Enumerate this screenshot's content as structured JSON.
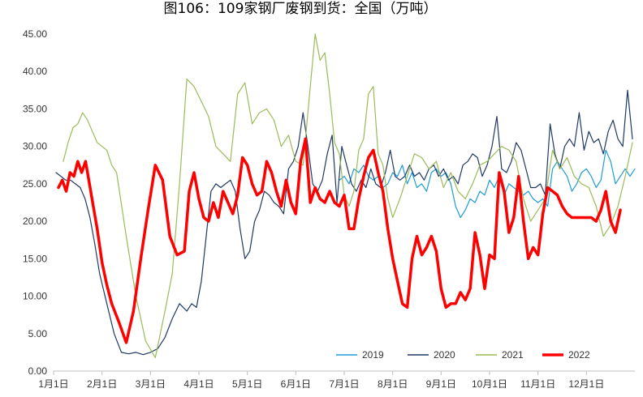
{
  "chart_data": {
    "type": "line",
    "title": "图106：109家钢厂废钢到货：全国（万吨）",
    "xlabel": "",
    "ylabel": "",
    "ylim": [
      0,
      45
    ],
    "yticks": [
      "0.00",
      "5.00",
      "10.00",
      "15.00",
      "20.00",
      "25.00",
      "30.00",
      "35.00",
      "40.00",
      "45.00"
    ],
    "x_tick_labels": [
      "1月1日",
      "2月1日",
      "3月1日",
      "4月1日",
      "5月1日",
      "6月1日",
      "7月1日",
      "8月1日",
      "9月1日",
      "10月1日",
      "11月1日",
      "12月1日"
    ],
    "x_unit": "month",
    "xlim": [
      0,
      12
    ],
    "grid": false,
    "legend_position": "bottom-right",
    "series": [
      {
        "name": "2019",
        "color": "#1E9BD7",
        "x": [
          5.9,
          6.0,
          6.1,
          6.2,
          6.3,
          6.4,
          6.5,
          6.6,
          6.7,
          6.8,
          6.9,
          7.0,
          7.1,
          7.2,
          7.3,
          7.4,
          7.5,
          7.6,
          7.7,
          7.8,
          7.9,
          8.0,
          8.1,
          8.2,
          8.3,
          8.4,
          8.5,
          8.6,
          8.7,
          8.8,
          8.9,
          9.0,
          9.1,
          9.2,
          9.3,
          9.4,
          9.5,
          9.6,
          9.7,
          9.8,
          9.9,
          10.0,
          10.1,
          10.2,
          10.3,
          10.4,
          10.5,
          10.6,
          10.7,
          10.8,
          10.9,
          11.0,
          11.1,
          11.2,
          11.3,
          11.4,
          11.5,
          11.6,
          11.7,
          11.8,
          11.9,
          12.0
        ],
        "values": [
          25.5,
          26.0,
          25.0,
          27.0,
          26.5,
          27.5,
          26.0,
          25.5,
          26.0,
          24.5,
          25.0,
          26.5,
          26.0,
          27.5,
          25.0,
          26.5,
          24.5,
          25.0,
          24.0,
          26.5,
          27.0,
          26.0,
          26.5,
          25.0,
          22.0,
          20.5,
          21.5,
          23.0,
          22.5,
          24.0,
          23.5,
          25.5,
          24.5,
          26.0,
          23.5,
          25.0,
          24.5,
          24.0,
          23.5,
          24.0,
          23.0,
          22.5,
          23.0,
          22.0,
          27.0,
          28.0,
          27.0,
          26.0,
          24.0,
          25.0,
          26.5,
          27.0,
          26.0,
          24.5,
          25.5,
          29.5,
          28.0,
          25.0,
          26.0,
          27.0,
          26.0,
          27.0
        ]
      },
      {
        "name": "2020",
        "color": "#1F3864",
        "x": [
          0.05,
          0.15,
          0.25,
          0.35,
          0.45,
          0.55,
          0.65,
          0.75,
          0.85,
          0.95,
          1.1,
          1.25,
          1.4,
          1.55,
          1.7,
          1.85,
          2.0,
          2.15,
          2.3,
          2.45,
          2.6,
          2.75,
          2.85,
          2.95,
          3.05,
          3.15,
          3.25,
          3.35,
          3.45,
          3.55,
          3.65,
          3.75,
          3.85,
          3.95,
          4.05,
          4.15,
          4.25,
          4.35,
          4.45,
          4.55,
          4.65,
          4.75,
          4.85,
          4.95,
          5.05,
          5.15,
          5.25,
          5.35,
          5.45,
          5.55,
          5.65,
          5.75,
          5.85,
          5.95,
          6.05,
          6.15,
          6.25,
          6.35,
          6.45,
          6.55,
          6.65,
          6.75,
          6.85,
          6.95,
          7.05,
          7.15,
          7.25,
          7.35,
          7.45,
          7.55,
          7.65,
          7.75,
          7.85,
          7.95,
          8.05,
          8.15,
          8.25,
          8.35,
          8.45,
          8.55,
          8.65,
          8.75,
          8.85,
          8.95,
          9.05,
          9.15,
          9.25,
          9.35,
          9.45,
          9.55,
          9.65,
          9.75,
          9.85,
          9.95,
          10.05,
          10.15,
          10.25,
          10.35,
          10.45,
          10.55,
          10.65,
          10.75,
          10.85,
          10.95,
          11.05,
          11.15,
          11.25,
          11.35,
          11.45,
          11.55,
          11.65,
          11.75,
          11.85,
          11.95
        ],
        "values": [
          26.5,
          26.0,
          25.5,
          25.5,
          25.0,
          24.5,
          23.0,
          20.5,
          17.0,
          13.0,
          9.0,
          5.0,
          2.5,
          2.3,
          2.5,
          2.2,
          2.5,
          3.0,
          4.5,
          7.0,
          9.0,
          8.0,
          9.0,
          8.5,
          12.0,
          18.0,
          24.0,
          25.0,
          24.5,
          25.0,
          25.5,
          24.0,
          19.0,
          15.0,
          16.0,
          20.0,
          21.5,
          24.0,
          23.5,
          22.5,
          22.0,
          21.0,
          27.0,
          28.0,
          30.0,
          34.5,
          30.0,
          25.0,
          24.0,
          25.5,
          29.0,
          31.5,
          22.5,
          30.0,
          27.5,
          25.0,
          24.0,
          25.5,
          24.5,
          27.0,
          25.0,
          24.5,
          26.5,
          29.5,
          26.0,
          25.5,
          26.0,
          27.5,
          26.0,
          26.5,
          25.5,
          27.0,
          27.5,
          26.0,
          27.0,
          25.5,
          26.0,
          25.0,
          27.5,
          28.0,
          29.0,
          28.5,
          26.0,
          27.5,
          30.0,
          34.0,
          27.0,
          26.5,
          28.0,
          30.5,
          29.5,
          27.0,
          24.5,
          24.5,
          25.0,
          23.5,
          33.0,
          29.0,
          27.0,
          30.0,
          31.0,
          30.0,
          34.5,
          29.5,
          32.0,
          30.5,
          31.0,
          29.0,
          32.0,
          33.5,
          31.0,
          30.0,
          37.5,
          31.0
        ]
      },
      {
        "name": "2021",
        "color": "#9BBB59",
        "x": [
          0.2,
          0.3,
          0.4,
          0.5,
          0.6,
          0.7,
          0.8,
          0.9,
          1.0,
          1.1,
          1.2,
          1.3,
          1.5,
          1.7,
          1.9,
          2.1,
          2.3,
          2.45,
          2.6,
          2.75,
          2.9,
          3.05,
          3.2,
          3.35,
          3.5,
          3.65,
          3.8,
          3.95,
          4.1,
          4.25,
          4.4,
          4.55,
          4.7,
          4.85,
          5.0,
          5.15,
          5.3,
          5.4,
          5.5,
          5.6,
          5.7,
          5.8,
          5.9,
          6.0,
          6.1,
          6.2,
          6.3,
          6.4,
          6.5,
          6.6,
          6.7,
          6.8,
          6.9,
          7.0,
          7.15,
          7.3,
          7.45,
          7.6,
          7.75,
          7.9,
          8.05,
          8.2,
          8.35,
          8.5,
          8.65,
          8.8,
          8.95,
          9.1,
          9.25,
          9.4,
          9.55,
          9.7,
          9.85,
          10.0,
          10.15,
          10.3,
          10.45,
          10.6,
          10.75,
          10.9,
          11.05,
          11.2,
          11.35,
          11.5,
          11.65,
          11.8,
          11.95
        ],
        "values": [
          28.0,
          30.5,
          32.5,
          33.0,
          34.5,
          33.5,
          32.0,
          30.5,
          30.0,
          29.5,
          27.5,
          26.5,
          18.0,
          10.0,
          4.0,
          1.8,
          8.0,
          13.0,
          25.0,
          39.0,
          38.0,
          36.0,
          34.0,
          30.0,
          29.0,
          28.0,
          37.0,
          38.5,
          33.0,
          34.5,
          35.0,
          33.5,
          30.0,
          31.5,
          28.0,
          27.5,
          38.0,
          45.0,
          41.5,
          42.5,
          37.0,
          30.5,
          29.0,
          23.5,
          22.0,
          24.0,
          29.5,
          31.0,
          37.0,
          38.0,
          29.0,
          27.5,
          23.0,
          20.5,
          23.0,
          26.0,
          29.0,
          28.5,
          27.0,
          28.0,
          24.5,
          26.5,
          24.0,
          23.0,
          25.0,
          27.5,
          28.0,
          29.0,
          30.0,
          29.5,
          28.0,
          23.0,
          20.0,
          21.5,
          23.0,
          29.5,
          27.0,
          28.5,
          26.0,
          25.0,
          24.5,
          22.0,
          18.0,
          19.5,
          22.0,
          26.0,
          30.5
        ]
      },
      {
        "name": "2022",
        "color": "#FF0000",
        "x": [
          0.1,
          0.18,
          0.26,
          0.34,
          0.42,
          0.5,
          0.58,
          0.66,
          0.74,
          0.82,
          0.9,
          1.0,
          1.1,
          1.2,
          1.35,
          1.5,
          1.65,
          1.8,
          1.95,
          2.1,
          2.25,
          2.4,
          2.55,
          2.7,
          2.8,
          2.9,
          3.0,
          3.1,
          3.2,
          3.3,
          3.4,
          3.5,
          3.6,
          3.7,
          3.8,
          3.9,
          4.0,
          4.1,
          4.2,
          4.3,
          4.4,
          4.5,
          4.6,
          4.7,
          4.8,
          4.9,
          5.0,
          5.1,
          5.2,
          5.3,
          5.4,
          5.5,
          5.6,
          5.7,
          5.8,
          5.9,
          6.0,
          6.1,
          6.2,
          6.3,
          6.4,
          6.5,
          6.6,
          6.7,
          6.8,
          6.9,
          7.0,
          7.1,
          7.2,
          7.3,
          7.4,
          7.5,
          7.6,
          7.7,
          7.8,
          7.9,
          8.0,
          8.1,
          8.2,
          8.3,
          8.4,
          8.5,
          8.6,
          8.7,
          8.8,
          8.9,
          9.0,
          9.1,
          9.2,
          9.3,
          9.4,
          9.5,
          9.6,
          9.7,
          9.8,
          9.9,
          10.0,
          10.1,
          10.2,
          10.3,
          10.4,
          10.5,
          10.6,
          10.7,
          10.8,
          10.9,
          11.0,
          11.1,
          11.2,
          11.3,
          11.4,
          11.5,
          11.6,
          11.7
        ],
        "values": [
          24.5,
          25.5,
          24.0,
          26.5,
          26.0,
          28.0,
          26.5,
          28.0,
          25.0,
          22.0,
          19.0,
          14.5,
          11.5,
          9.0,
          6.5,
          3.8,
          8.0,
          15.0,
          21.5,
          27.5,
          25.5,
          18.0,
          15.5,
          16.0,
          24.0,
          26.5,
          23.0,
          20.5,
          20.0,
          22.5,
          20.5,
          24.0,
          22.5,
          21.0,
          23.5,
          28.5,
          27.5,
          25.0,
          23.5,
          24.0,
          28.0,
          26.5,
          24.0,
          22.0,
          25.5,
          22.5,
          21.0,
          28.0,
          31.0,
          22.5,
          24.5,
          23.0,
          22.5,
          24.0,
          22.5,
          22.0,
          23.5,
          19.0,
          19.0,
          23.0,
          26.0,
          28.5,
          29.5,
          26.5,
          24.0,
          19.0,
          15.0,
          12.0,
          9.0,
          8.5,
          15.0,
          18.0,
          15.5,
          16.5,
          18.0,
          16.0,
          11.0,
          8.5,
          9.0,
          9.0,
          10.5,
          9.5,
          11.0,
          18.5,
          15.5,
          11.0,
          15.5,
          15.0,
          26.5,
          24.0,
          18.5,
          20.5,
          26.0,
          20.0,
          15.0,
          16.5,
          15.5,
          21.0,
          24.5,
          24.0,
          23.5,
          22.0,
          21.0,
          20.5,
          20.5,
          20.5,
          20.5,
          20.5,
          20.0,
          21.5,
          24.0,
          20.0,
          18.5,
          21.5
        ]
      }
    ]
  }
}
